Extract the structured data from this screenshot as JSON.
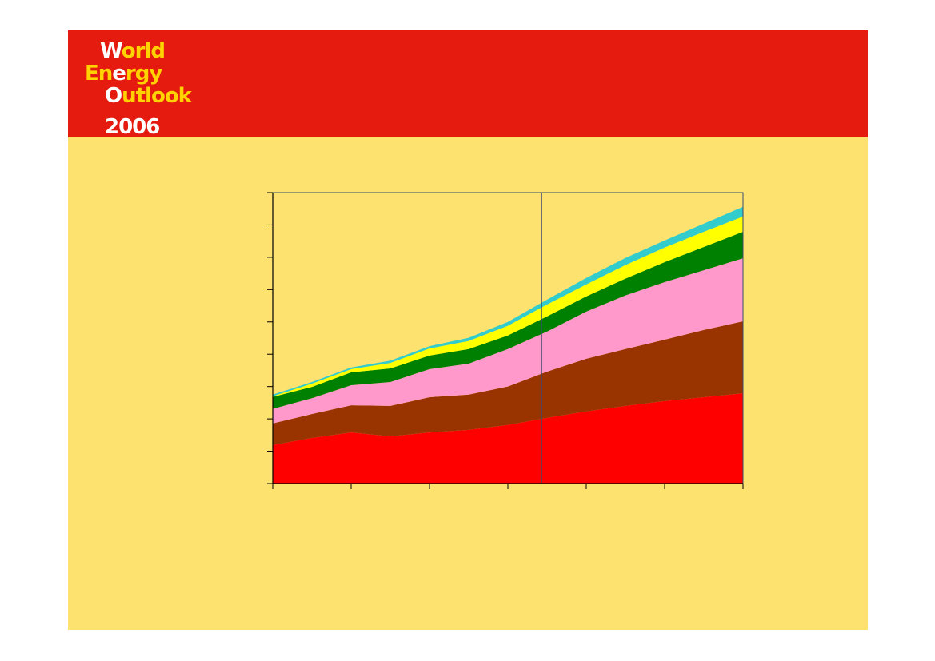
{
  "logo": {
    "lines": [
      [
        "W",
        "orld"
      ],
      [
        "En",
        "e",
        "rgy"
      ],
      [
        "O",
        "utlook"
      ],
      [
        "2006"
      ]
    ]
  },
  "chart_data": {
    "type": "stacked-area",
    "x": [
      0,
      5,
      10,
      15,
      20,
      25,
      30,
      35,
      40,
      45,
      50,
      55,
      60
    ],
    "xlim": [
      0,
      60
    ],
    "xticks": [
      0,
      10,
      20,
      30,
      40,
      50,
      60
    ],
    "ylim": [
      0,
      9
    ],
    "yticks": [
      0,
      1,
      2,
      3,
      4,
      5,
      6,
      7,
      8,
      9
    ],
    "divider_x": 34.3,
    "series": [
      {
        "color": "#ff0000",
        "values": [
          1.19,
          1.41,
          1.58,
          1.46,
          1.58,
          1.66,
          1.81,
          2.03,
          2.23,
          2.4,
          2.55,
          2.67,
          2.79
        ]
      },
      {
        "color": "#993300",
        "values": [
          0.67,
          0.74,
          0.84,
          0.94,
          1.09,
          1.09,
          1.19,
          1.43,
          1.63,
          1.76,
          1.9,
          2.08,
          2.23
        ]
      },
      {
        "color": "#ff99cc",
        "values": [
          0.45,
          0.49,
          0.62,
          0.74,
          0.87,
          0.96,
          1.16,
          1.24,
          1.46,
          1.66,
          1.78,
          1.85,
          1.95
        ]
      },
      {
        "color": "#008000",
        "values": [
          0.37,
          0.35,
          0.4,
          0.42,
          0.42,
          0.45,
          0.42,
          0.47,
          0.47,
          0.52,
          0.62,
          0.72,
          0.82
        ]
      },
      {
        "color": "#ffff00",
        "values": [
          0.02,
          0.1,
          0.1,
          0.17,
          0.22,
          0.25,
          0.3,
          0.37,
          0.37,
          0.42,
          0.45,
          0.47,
          0.47
        ]
      },
      {
        "color": "#33cccc",
        "values": [
          0.05,
          0.05,
          0.05,
          0.07,
          0.07,
          0.1,
          0.12,
          0.15,
          0.2,
          0.22,
          0.22,
          0.25,
          0.3
        ]
      }
    ]
  }
}
